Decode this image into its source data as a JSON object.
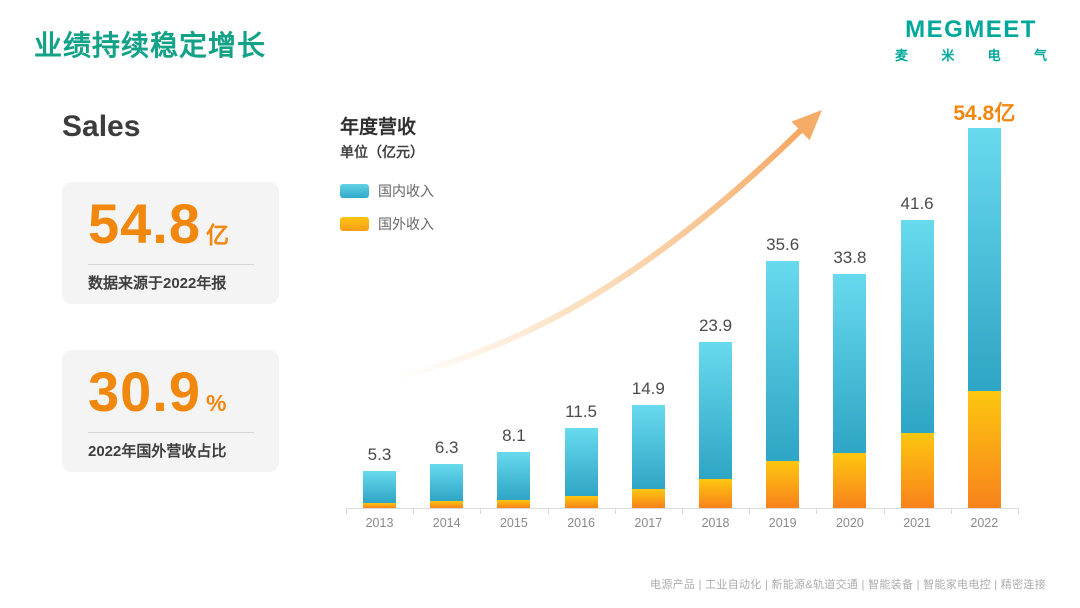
{
  "page": {
    "title": "业绩持续稳定增长"
  },
  "logo": {
    "name": "MEGMEET",
    "cn_chars": [
      "麦",
      "米",
      "电",
      "气"
    ],
    "brand_color": "#00A89B"
  },
  "sales_panel": {
    "heading": "Sales",
    "cards": [
      {
        "number": "54.8",
        "suffix": "亿",
        "caption": "数据来源于2022年报"
      },
      {
        "number": "30.9",
        "suffix": "%",
        "caption": "2022年国外营收占比"
      }
    ],
    "accent_color": "#F2870E"
  },
  "chart_data": {
    "type": "bar",
    "stacked": true,
    "title": "年度营收",
    "unit_label": "单位（亿元）",
    "categories": [
      "2013",
      "2014",
      "2015",
      "2016",
      "2017",
      "2018",
      "2019",
      "2020",
      "2021",
      "2022"
    ],
    "totals": [
      5.3,
      6.3,
      8.1,
      11.5,
      14.9,
      23.9,
      35.6,
      33.8,
      41.6,
      54.8
    ],
    "total_labels": [
      "5.3",
      "6.3",
      "8.1",
      "11.5",
      "14.9",
      "23.9",
      "35.6",
      "33.8",
      "41.6",
      "54.8亿"
    ],
    "series": [
      {
        "name": "国内收入",
        "color": "#3EC1DB",
        "values": [
          4.5,
          5.3,
          6.9,
          9.7,
          12.2,
          19.7,
          28.8,
          25.8,
          30.8,
          37.9
        ]
      },
      {
        "name": "国外收入",
        "color": "#FBA818",
        "values": [
          0.8,
          1.0,
          1.2,
          1.8,
          2.7,
          4.2,
          6.8,
          8.0,
          10.8,
          16.9
        ]
      }
    ],
    "ylim": [
      0,
      54.8
    ],
    "legend_position": "top-left",
    "grid": false,
    "annotations": [
      "growth-arrow"
    ]
  },
  "footer": {
    "items": [
      "电源产品",
      "工业自动化",
      "新能源&轨道交通",
      "智能装备",
      "智能家电电控",
      "精密连接"
    ],
    "separator": " | "
  }
}
